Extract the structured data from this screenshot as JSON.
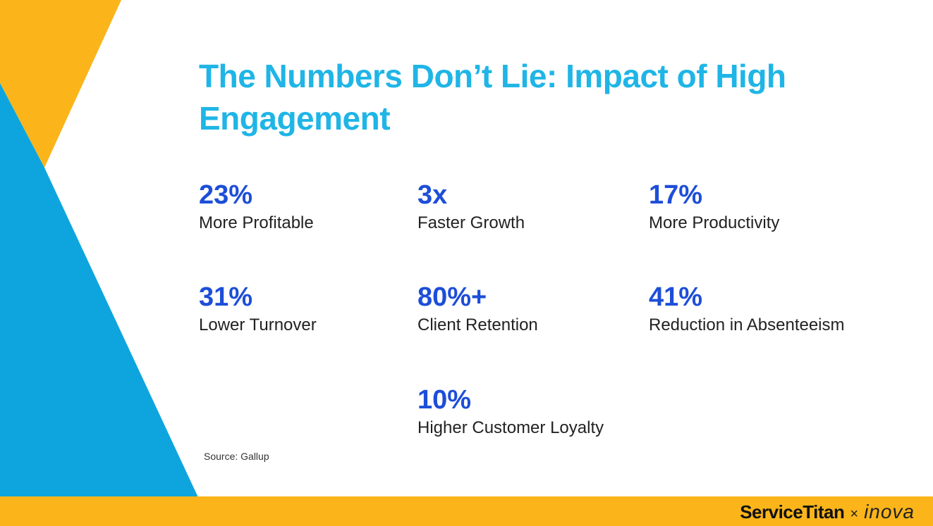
{
  "colors": {
    "title": "#1fb5e6",
    "stat_value": "#1d4ed8",
    "yellow": "#fbb51a",
    "blue": "#0ea5de"
  },
  "title": "The Numbers Don’t Lie: Impact of High Engagement",
  "stats": [
    {
      "value": "23%",
      "label": "More Profitable"
    },
    {
      "value": "3x",
      "label": "Faster Growth"
    },
    {
      "value": "17%",
      "label": "More Productivity"
    },
    {
      "value": "31%",
      "label": "Lower Turnover"
    },
    {
      "value": "80%+",
      "label": "Client Retention"
    },
    {
      "value": "41%",
      "label": "Reduction in Absenteeism"
    },
    {
      "value": "10%",
      "label": "Higher Customer Loyalty"
    }
  ],
  "source": "Source: Gallup",
  "footer": {
    "brand_primary": "ServiceTitan",
    "separator": "×",
    "brand_secondary": "inova"
  }
}
